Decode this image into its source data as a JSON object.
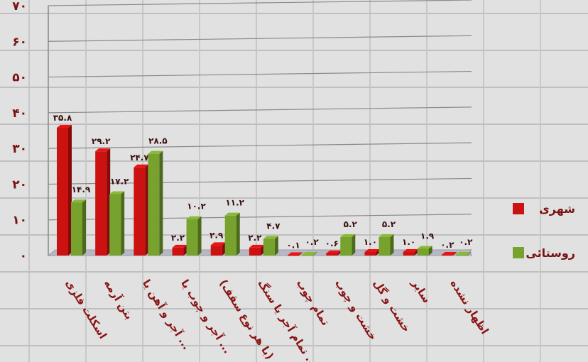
{
  "chart_data": {
    "type": "bar",
    "title": "",
    "xlabel": "",
    "ylabel": "",
    "ylim": [
      0,
      70
    ],
    "yticks": [
      "۰",
      "۱۰",
      "۲۰",
      "۳۰",
      "۴۰",
      "۵۰",
      "۶۰",
      "۷۰"
    ],
    "grid": true,
    "legend_position": "right",
    "categories": [
      "اسکلت فلزی",
      "بتن آرمه",
      "آجر و آهن یا ...",
      "آجر و چوب یا ...",
      "(با هر نوع سقف)",
      "تمام آجر یا سنگ ...",
      "تمام چوب",
      "خشت و چوب",
      "خشت و گل",
      "سایر",
      "اظهار نشده"
    ],
    "series": [
      {
        "name": "شهری",
        "color": "#cc1111",
        "values": [
          35.8,
          29.2,
          24.7,
          2.2,
          2.9,
          2.2,
          0.1,
          0.6,
          1.0,
          1.0,
          0.2
        ],
        "labels": [
          "۳۵.۸",
          "۲۹.۲",
          "۲۴.۷",
          "۲.۲",
          "۲.۹",
          "۲.۲",
          "۰.۱",
          "۰.۶",
          "۱.۰",
          "۱.۰",
          "۰.۲"
        ]
      },
      {
        "name": "روستائی",
        "color": "#77a22e",
        "values": [
          14.9,
          17.2,
          28.5,
          10.2,
          11.2,
          4.7,
          0.2,
          5.2,
          5.2,
          1.9,
          0.2
        ],
        "labels": [
          "۱۴.۹",
          "۱۷.۲",
          "۲۸.۵",
          "۱۰.۲",
          "۱۱.۲",
          "۴.۷",
          "۰.۲",
          "۵.۲",
          "۵.۲",
          "۱.۹",
          "۰.۲"
        ]
      }
    ]
  }
}
